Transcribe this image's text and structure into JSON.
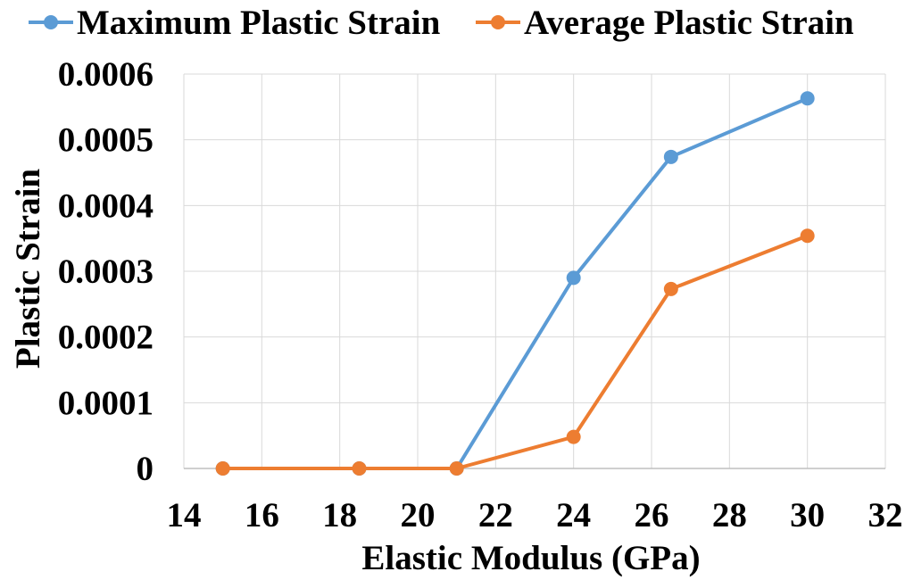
{
  "chart_data": {
    "type": "line",
    "xlabel": "Elastic Modulus (GPa)",
    "ylabel": "Plastic Strain",
    "xlim": [
      14,
      32
    ],
    "ylim": [
      0,
      0.0006
    ],
    "x_ticks": [
      "14",
      "16",
      "18",
      "20",
      "22",
      "24",
      "26",
      "28",
      "30",
      "32"
    ],
    "y_ticks": [
      "0",
      "0.0001",
      "0.0002",
      "0.0003",
      "0.0004",
      "0.0005",
      "0.0006"
    ],
    "grid": true,
    "legend_position": "top",
    "series": [
      {
        "name": "Maximum Plastic Strain",
        "color": "#5B9BD5",
        "points": [
          [
            15,
            0
          ],
          [
            18.5,
            0
          ],
          [
            21,
            0
          ],
          [
            24,
            0.00029
          ],
          [
            26.5,
            0.000474
          ],
          [
            30,
            0.000563
          ]
        ]
      },
      {
        "name": "Average Plastic Strain",
        "color": "#ED7D31",
        "points": [
          [
            15,
            0
          ],
          [
            18.5,
            0
          ],
          [
            21,
            0
          ],
          [
            24,
            4.8e-05
          ],
          [
            26.5,
            0.000273
          ],
          [
            30,
            0.000354
          ]
        ]
      }
    ]
  }
}
